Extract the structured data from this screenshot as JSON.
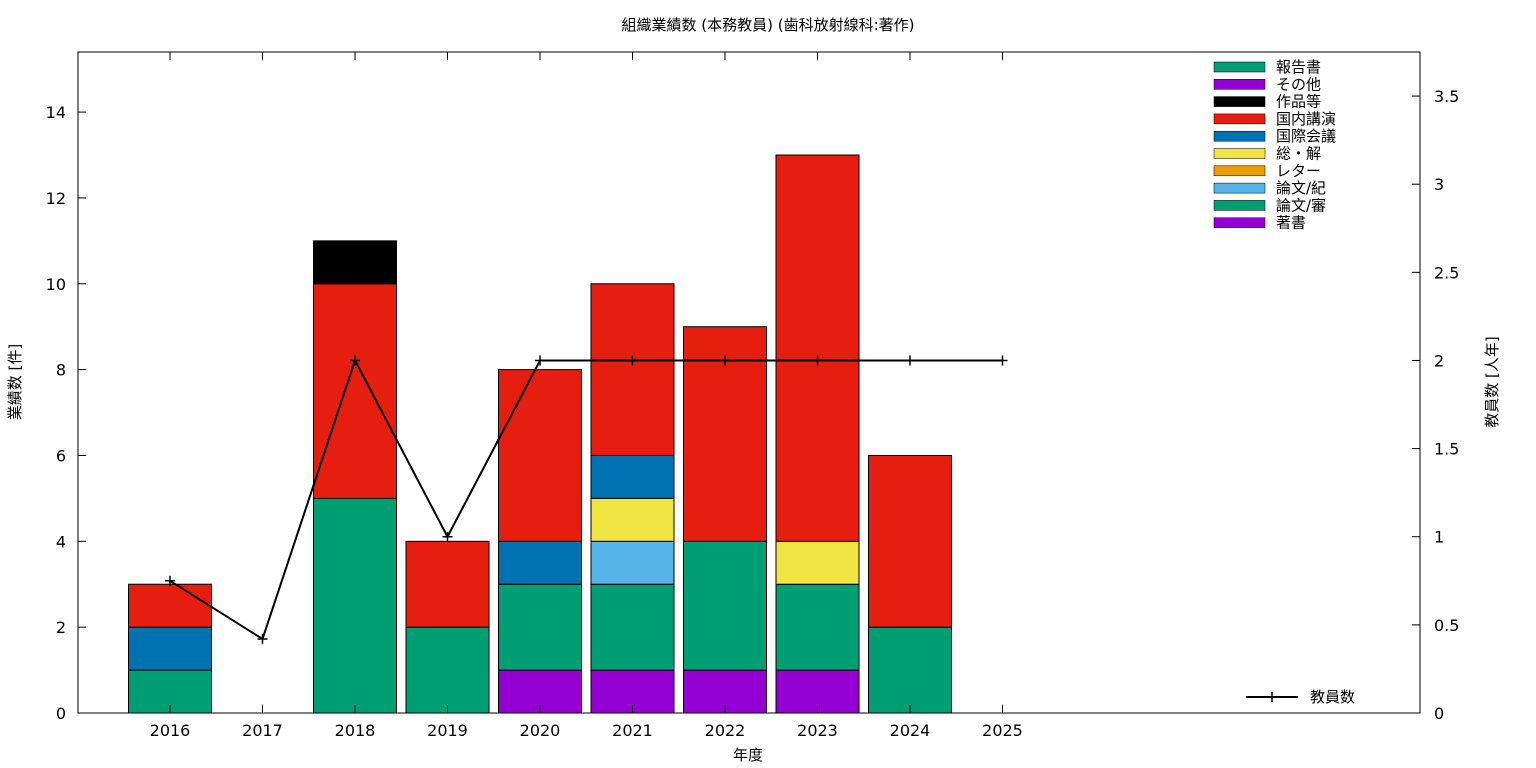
{
  "chart_data": {
    "type": "bar",
    "title": "組織業績数 (本務教員) (歯科放射線科:著作)",
    "xlabel": "年度",
    "ylabel": "業績数 [件]",
    "y2label": "教員数 [人年]",
    "categories": [
      "2016",
      "2017",
      "2018",
      "2019",
      "2020",
      "2021",
      "2022",
      "2023",
      "2024",
      "2025"
    ],
    "ylim": [
      0,
      15.4
    ],
    "yticks": [
      0,
      2,
      4,
      6,
      8,
      10,
      12,
      14
    ],
    "y2lim": [
      0,
      3.75
    ],
    "y2ticks": [
      0,
      0.5,
      1,
      1.5,
      2,
      2.5,
      3,
      3.5
    ],
    "grid": false,
    "stacked": true,
    "stack_order": [
      "著書",
      "論文/審",
      "論文/紀",
      "レター",
      "総・解",
      "国際会議",
      "国内講演",
      "作品等",
      "その他",
      "報告書"
    ],
    "series": [
      {
        "name": "報告書",
        "color": "#009e73",
        "values": [
          0,
          0,
          0,
          0,
          0,
          0,
          0,
          0,
          0,
          0
        ]
      },
      {
        "name": "その他",
        "color": "#9400d3",
        "values": [
          0,
          0,
          0,
          0,
          0,
          0,
          0,
          0,
          0,
          0
        ]
      },
      {
        "name": "作品等",
        "color": "#000000",
        "values": [
          0,
          0,
          1,
          0,
          0,
          0,
          0,
          0,
          0,
          0
        ]
      },
      {
        "name": "国内講演",
        "color": "#e51e10",
        "values": [
          1,
          0,
          5,
          2,
          4,
          4,
          5,
          9,
          4,
          0
        ]
      },
      {
        "name": "国際会議",
        "color": "#0072b2",
        "values": [
          1,
          0,
          0,
          0,
          1,
          1,
          0,
          0,
          0,
          0
        ]
      },
      {
        "name": "総・解",
        "color": "#f0e442",
        "values": [
          0,
          0,
          0,
          0,
          0,
          1,
          0,
          1,
          0,
          0
        ]
      },
      {
        "name": "レター",
        "color": "#e69f00",
        "values": [
          0,
          0,
          0,
          0,
          0,
          0,
          0,
          0,
          0,
          0
        ]
      },
      {
        "name": "論文/紀",
        "color": "#56b4e9",
        "values": [
          0,
          0,
          0,
          0,
          0,
          1,
          0,
          0,
          0,
          0
        ]
      },
      {
        "name": "論文/審",
        "color": "#009e73",
        "values": [
          1,
          0,
          5,
          2,
          2,
          2,
          3,
          2,
          2,
          0
        ]
      },
      {
        "name": "著書",
        "color": "#9400d3",
        "values": [
          0,
          0,
          0,
          0,
          1,
          1,
          1,
          1,
          0,
          0
        ]
      }
    ],
    "line_series": {
      "name": "教員数",
      "axis": "right",
      "color": "#000000",
      "values": [
        0.75,
        0.42,
        2,
        1,
        2,
        2,
        2,
        2,
        2,
        2
      ]
    },
    "legend_placement": "top-right"
  }
}
